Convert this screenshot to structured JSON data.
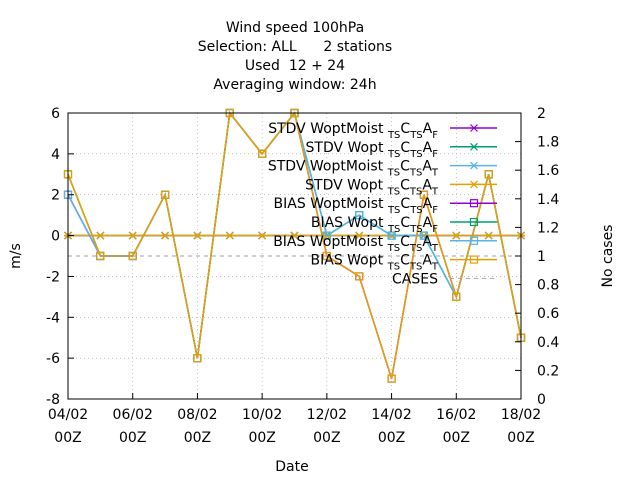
{
  "chart_data": {
    "type": "line",
    "title_lines": [
      "Wind speed 100hPa",
      "Selection: ALL      2 stations",
      "Used  12 + 24",
      "Averaging window: 24h"
    ],
    "xlabel": "Date",
    "ylabel": "m/s",
    "y2label": "No cases",
    "x_ticks": [
      {
        "day": 4,
        "l1": "04/02",
        "l2": "00Z"
      },
      {
        "day": 6,
        "l1": "06/02",
        "l2": "00Z"
      },
      {
        "day": 8,
        "l1": "08/02",
        "l2": "00Z"
      },
      {
        "day": 10,
        "l1": "10/02",
        "l2": "00Z"
      },
      {
        "day": 12,
        "l1": "12/02",
        "l2": "00Z"
      },
      {
        "day": 14,
        "l1": "14/02",
        "l2": "00Z"
      },
      {
        "day": 16,
        "l1": "16/02",
        "l2": "00Z"
      },
      {
        "day": 18,
        "l1": "18/02",
        "l2": "00Z"
      }
    ],
    "xlim": [
      4,
      18
    ],
    "ylim": [
      -8,
      6
    ],
    "y_ticks": [
      -8,
      -6,
      -4,
      -2,
      0,
      2,
      4,
      6
    ],
    "y2lim": [
      0,
      2
    ],
    "y2_ticks": [
      "0",
      "0.2",
      "0.4",
      "0.6",
      "0.8",
      "1",
      "1.2",
      "1.4",
      "1.6",
      "1.8",
      "2"
    ],
    "grid": true,
    "legend_position": "top-right",
    "series": [
      {
        "label_main": "STDV WoptMoist",
        "label_tail": "F",
        "marker": "x",
        "color": "#9400d3",
        "dash": "",
        "axis": "y1",
        "x": [
          4,
          5,
          6,
          7,
          8,
          9,
          10,
          11,
          12,
          13,
          14,
          15,
          16,
          17,
          18
        ],
        "y": [
          0,
          0,
          0,
          0,
          0,
          0,
          0,
          0,
          0,
          0,
          0,
          0,
          0,
          0,
          0
        ]
      },
      {
        "label_main": "STDV Wopt",
        "label_tail": "F",
        "marker": "x",
        "color": "#009e73",
        "dash": "",
        "axis": "y1",
        "x": [
          4,
          5,
          6,
          7,
          8,
          9,
          10,
          11,
          12,
          13,
          14,
          15,
          16,
          17,
          18
        ],
        "y": [
          0,
          0,
          0,
          0,
          0,
          0,
          0,
          0,
          0,
          0,
          0,
          0,
          0,
          0,
          0
        ]
      },
      {
        "label_main": "STDV WoptMoist",
        "label_tail": "T",
        "marker": "x",
        "color": "#56b4e9",
        "dash": "",
        "axis": "y1",
        "x": [
          4,
          5,
          6,
          7,
          8,
          9,
          10,
          11,
          12,
          13,
          14,
          15,
          16,
          17,
          18
        ],
        "y": [
          0,
          0,
          0,
          0,
          0,
          0,
          0,
          0,
          0,
          0,
          0,
          0,
          0,
          0,
          0
        ]
      },
      {
        "label_main": "STDV Wopt",
        "label_tail": "T",
        "marker": "x",
        "color": "#e69f00",
        "dash": "",
        "axis": "y1",
        "x": [
          4,
          5,
          6,
          7,
          8,
          9,
          10,
          11,
          12,
          13,
          14,
          15,
          16,
          17,
          18
        ],
        "y": [
          0,
          0,
          0,
          0,
          0,
          0,
          0,
          0,
          0,
          0,
          0,
          0,
          0,
          0,
          0
        ]
      },
      {
        "label_main": "BIAS WoptMoist",
        "label_tail": "F",
        "marker": "square",
        "color": "#9400d3",
        "dash": "",
        "axis": "y1",
        "x": [
          4,
          5,
          6,
          7,
          8,
          9,
          10,
          11,
          12,
          13,
          14,
          15,
          16,
          17,
          18
        ],
        "y": [
          2,
          -1,
          -1,
          2,
          -6,
          6,
          4,
          6,
          -1,
          -2,
          -7,
          2,
          -3,
          3,
          -5
        ]
      },
      {
        "label_main": "BIAS Wopt",
        "label_tail": "F",
        "marker": "square",
        "color": "#009e73",
        "dash": "",
        "axis": "y1",
        "x": [
          4,
          5,
          6,
          7,
          8,
          9,
          10,
          11,
          12,
          13,
          14,
          15,
          16,
          17,
          18
        ],
        "y": [
          3,
          -1,
          -1,
          2,
          -6,
          6,
          4,
          6,
          0,
          1,
          0,
          0,
          -3,
          3,
          -5
        ]
      },
      {
        "label_main": "BIAS WoptMoist",
        "label_tail": "T",
        "marker": "square",
        "color": "#56b4e9",
        "dash": "",
        "axis": "y1",
        "x": [
          4,
          5,
          6,
          7,
          8,
          9,
          10,
          11,
          12,
          13,
          14,
          15,
          16,
          17,
          18
        ],
        "y": [
          2,
          -1,
          -1,
          2,
          -6,
          6,
          4,
          6,
          0,
          1,
          0,
          0,
          -3,
          3,
          -5
        ]
      },
      {
        "label_main": "BIAS Wopt",
        "label_tail": "T",
        "marker": "square",
        "color": "#e69f00",
        "dash": "",
        "axis": "y1",
        "x": [
          4,
          5,
          6,
          7,
          8,
          9,
          10,
          11,
          12,
          13,
          14,
          15,
          16,
          17,
          18
        ],
        "y": [
          3,
          -1,
          -1,
          2,
          -6,
          6,
          4,
          6,
          -1,
          -2,
          -7,
          2,
          -3,
          3,
          -5
        ]
      },
      {
        "label_main": "CASES",
        "label_tail": "",
        "marker": "",
        "color": "#a0a0a0",
        "dash": "4,4",
        "axis": "y2",
        "x": [
          4,
          18
        ],
        "y": [
          1,
          1
        ]
      }
    ]
  }
}
